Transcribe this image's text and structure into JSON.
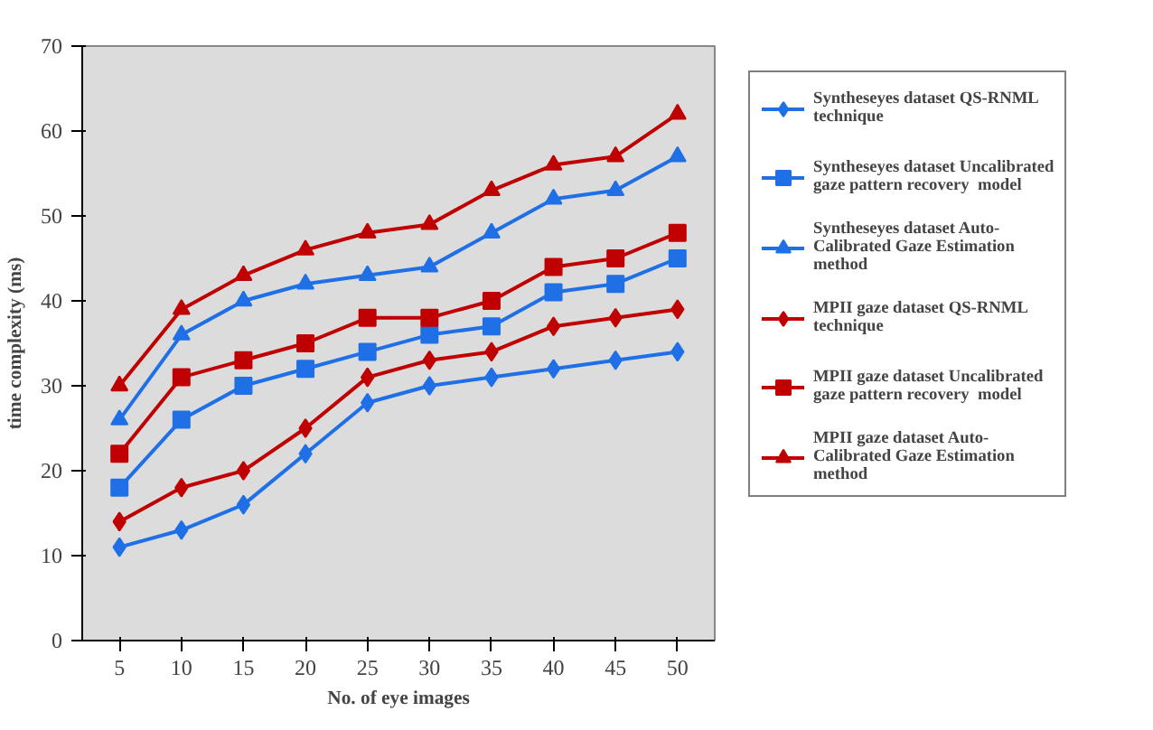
{
  "chart_data": {
    "type": "line",
    "xlabel": "No. of eye images",
    "ylabel": "time complexity (ms)",
    "categories": [
      "5",
      "10",
      "15",
      "20",
      "25",
      "30",
      "35",
      "40",
      "45",
      "50"
    ],
    "ylim": [
      0,
      70
    ],
    "yticks": [
      0,
      10,
      20,
      30,
      40,
      50,
      60,
      70
    ],
    "grid": false,
    "legend": "right",
    "line_style": "solid",
    "series": [
      {
        "name": "Syntheseyes dataset QS-RNML technique",
        "color": "#1f6fe6",
        "marker": "diamond",
        "values": [
          11,
          13,
          16,
          22,
          28,
          30,
          31,
          32,
          33,
          34
        ]
      },
      {
        "name": "Syntheseyes dataset Uncalibrated gaze pattern recovery  model",
        "color": "#1f6fe6",
        "marker": "square",
        "values": [
          18,
          26,
          30,
          32,
          34,
          36,
          37,
          41,
          42,
          45
        ]
      },
      {
        "name": "Syntheseyes dataset Auto-Calibrated Gaze Estimation method",
        "color": "#1f6fe6",
        "marker": "triangle",
        "values": [
          26,
          36,
          40,
          42,
          43,
          44,
          48,
          52,
          53,
          57
        ]
      },
      {
        "name": "MPII gaze dataset QS-RNML technique",
        "color": "#c00000",
        "marker": "diamond",
        "values": [
          14,
          18,
          20,
          25,
          31,
          33,
          34,
          37,
          38,
          39
        ]
      },
      {
        "name": "MPII gaze dataset Uncalibrated gaze pattern recovery  model",
        "color": "#c00000",
        "marker": "square",
        "values": [
          22,
          31,
          33,
          35,
          38,
          38,
          40,
          44,
          45,
          48
        ]
      },
      {
        "name": "MPII gaze dataset Auto-Calibrated Gaze Estimation method",
        "color": "#c00000",
        "marker": "triangle",
        "values": [
          30,
          39,
          43,
          46,
          48,
          49,
          53,
          56,
          57,
          62
        ]
      }
    ]
  }
}
